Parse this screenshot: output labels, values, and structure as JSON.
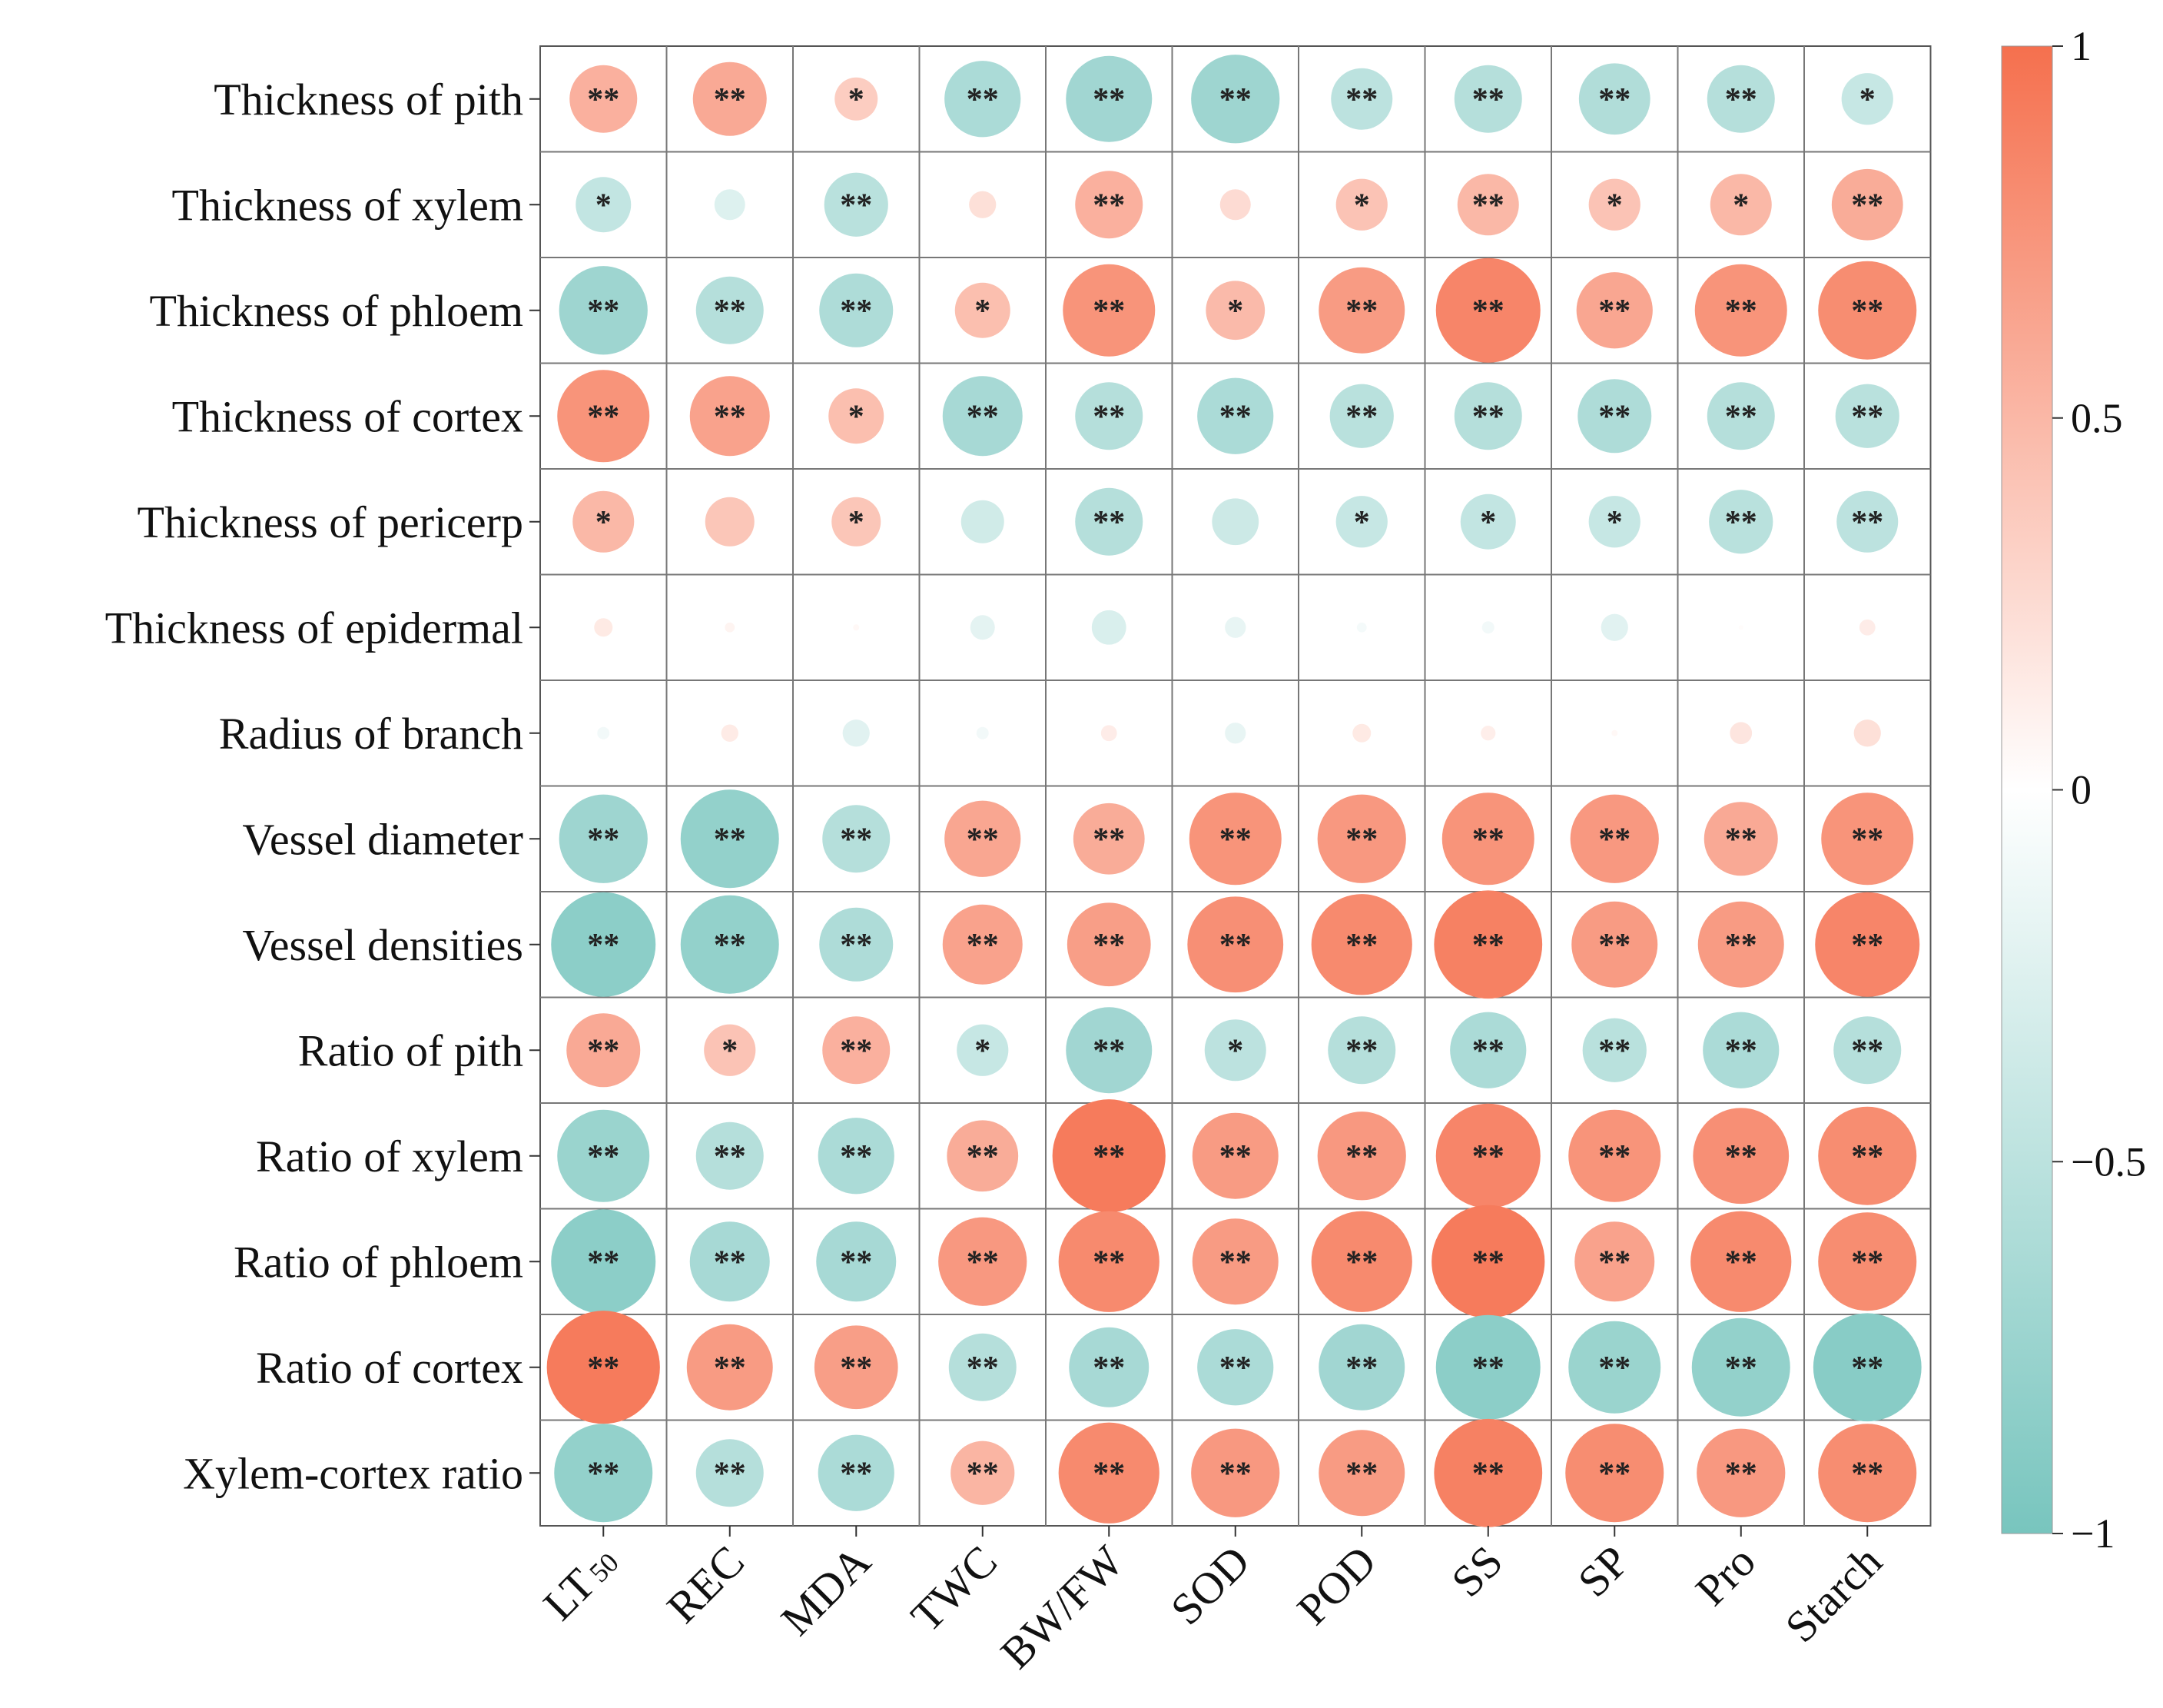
{
  "chart_data": {
    "type": "heatmap",
    "rows": [
      "Thickness of pith",
      "Thickness of xylem",
      "Thickness of phloem",
      "Thickness of cortex",
      "Thickness of pericerp",
      "Thickness of epidermal",
      "Radius of branch",
      "Vessel diameter",
      "Vessel densities",
      "Ratio of pith",
      "Ratio of xylem",
      "Ratio of phloem",
      "Ratio of cortex",
      "Xylem-cortex ratio"
    ],
    "columns": [
      "LT",
      "REC",
      "MDA",
      "TWC",
      "BW/FW",
      "SOD",
      "POD",
      "SS",
      "SP",
      "Pro",
      "Starch"
    ],
    "column_subscripts": [
      "50",
      "",
      "",
      "",
      "",
      "",
      "",
      "",
      "",
      "",
      ""
    ],
    "values": [
      [
        0.55,
        0.6,
        0.35,
        -0.62,
        -0.7,
        -0.72,
        -0.5,
        -0.55,
        -0.58,
        -0.55,
        -0.42
      ],
      [
        -0.45,
        -0.25,
        -0.52,
        0.22,
        0.55,
        0.25,
        0.42,
        0.5,
        0.42,
        0.5,
        0.58
      ],
      [
        -0.72,
        -0.55,
        -0.6,
        0.45,
        0.75,
        0.48,
        0.7,
        0.85,
        0.62,
        0.75,
        0.8
      ],
      [
        0.75,
        0.65,
        0.45,
        -0.65,
        -0.55,
        -0.62,
        -0.52,
        -0.55,
        -0.6,
        -0.55,
        -0.52
      ],
      [
        0.5,
        0.4,
        0.4,
        -0.35,
        -0.55,
        -0.38,
        -0.42,
        -0.45,
        -0.42,
        -0.52,
        -0.5
      ],
      [
        0.15,
        0.08,
        0.05,
        -0.2,
        -0.28,
        -0.17,
        -0.08,
        -0.1,
        -0.22,
        0.02,
        0.13
      ],
      [
        -0.1,
        0.14,
        -0.22,
        -0.1,
        0.13,
        -0.17,
        0.15,
        0.12,
        0.05,
        0.18,
        0.22
      ],
      [
        -0.72,
        -0.8,
        -0.55,
        0.62,
        0.58,
        0.75,
        0.72,
        0.75,
        0.72,
        0.6,
        0.75
      ],
      [
        -0.85,
        -0.8,
        -0.6,
        0.65,
        0.68,
        0.78,
        0.82,
        0.88,
        0.7,
        0.7,
        0.85
      ],
      [
        0.6,
        0.42,
        0.55,
        -0.42,
        -0.7,
        -0.5,
        -0.55,
        -0.62,
        -0.52,
        -0.62,
        -0.55
      ],
      [
        -0.75,
        -0.55,
        -0.62,
        0.58,
        0.92,
        0.7,
        0.72,
        0.85,
        0.75,
        0.78,
        0.8
      ],
      [
        -0.85,
        -0.65,
        -0.65,
        0.72,
        0.82,
        0.7,
        0.82,
        0.92,
        0.65,
        0.82,
        0.8
      ],
      [
        0.92,
        0.7,
        0.68,
        -0.55,
        -0.65,
        -0.62,
        -0.7,
        -0.85,
        -0.75,
        -0.8,
        -0.88
      ],
      [
        -0.8,
        -0.55,
        -0.62,
        0.52,
        0.82,
        0.72,
        0.7,
        0.88,
        0.8,
        0.72,
        0.8
      ]
    ],
    "significance": [
      [
        "**",
        "**",
        "*",
        "**",
        "**",
        "**",
        "**",
        "**",
        "**",
        "**",
        "*"
      ],
      [
        "*",
        "",
        "**",
        "",
        "**",
        "",
        "*",
        "**",
        "*",
        "*",
        "**"
      ],
      [
        "**",
        "**",
        "**",
        "*",
        "**",
        "*",
        "**",
        "**",
        "**",
        "**",
        "**"
      ],
      [
        "**",
        "**",
        "*",
        "**",
        "**",
        "**",
        "**",
        "**",
        "**",
        "**",
        "**"
      ],
      [
        "*",
        "",
        "*",
        "",
        "**",
        "",
        "*",
        "*",
        "*",
        "**",
        "**"
      ],
      [
        "",
        "",
        "",
        "",
        "",
        "",
        "",
        "",
        "",
        "",
        ""
      ],
      [
        "",
        "",
        "",
        "",
        "",
        "",
        "",
        "",
        "",
        "",
        ""
      ],
      [
        "**",
        "**",
        "**",
        "**",
        "**",
        "**",
        "**",
        "**",
        "**",
        "**",
        "**"
      ],
      [
        "**",
        "**",
        "**",
        "**",
        "**",
        "**",
        "**",
        "**",
        "**",
        "**",
        "**"
      ],
      [
        "**",
        "*",
        "**",
        "*",
        "**",
        "*",
        "**",
        "**",
        "**",
        "**",
        "**"
      ],
      [
        "**",
        "**",
        "**",
        "**",
        "**",
        "**",
        "**",
        "**",
        "**",
        "**",
        "**"
      ],
      [
        "**",
        "**",
        "**",
        "**",
        "**",
        "**",
        "**",
        "**",
        "**",
        "**",
        "**"
      ],
      [
        "**",
        "**",
        "**",
        "**",
        "**",
        "**",
        "**",
        "**",
        "**",
        "**",
        "**"
      ],
      [
        "**",
        "**",
        "**",
        "**",
        "**",
        "**",
        "**",
        "**",
        "**",
        "**",
        "**"
      ]
    ],
    "colorbar": {
      "range": [
        -1,
        1
      ],
      "ticks": [
        1,
        0.5,
        0,
        -0.5,
        -1
      ],
      "tick_labels": [
        "1",
        "0.5",
        "0",
        "−0.5",
        "−1"
      ],
      "negative_color": "#78c5be",
      "zero_color": "#ffffff",
      "positive_color": "#f5704e"
    },
    "grid": true,
    "legend": "right"
  }
}
